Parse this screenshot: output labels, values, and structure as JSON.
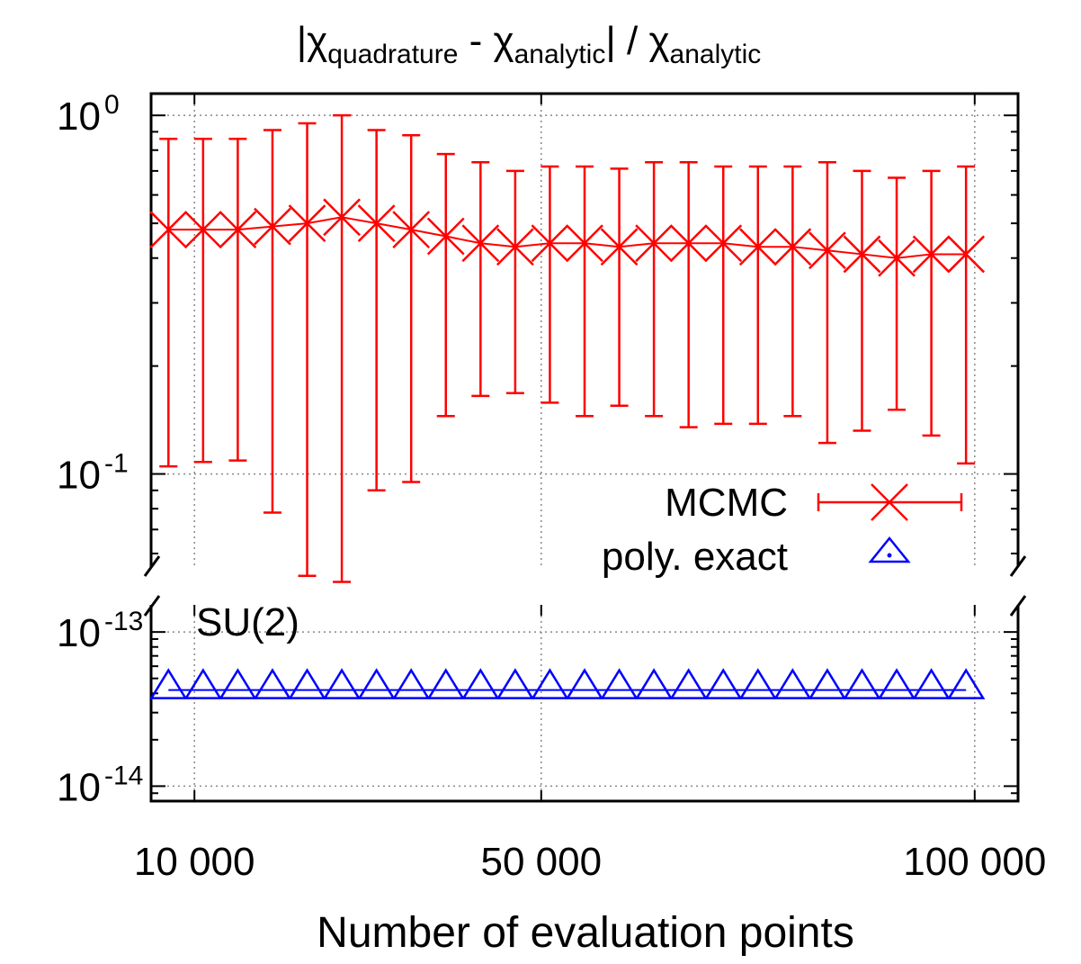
{
  "chart_data": {
    "type": "line",
    "title": {
      "abs_open": "|",
      "chi": "χ",
      "sub_quadrature": "quadrature",
      "minus": " - ",
      "sub_analytic": "analytic",
      "abs_close_div": "| / "
    },
    "xlabel": "Number of evaluation points",
    "xlim": [
      5000,
      105000
    ],
    "x_ticks": [
      {
        "value": 10000,
        "label": "10 000"
      },
      {
        "value": 50000,
        "label": "50 000"
      },
      {
        "value": 100000,
        "label": "100 000"
      }
    ],
    "yscale": "log",
    "broken_axis": true,
    "annotation": "SU(2)",
    "panels": [
      {
        "name": "upper",
        "ylim": [
          0.055,
          1.15
        ],
        "y_ticks": [
          {
            "value": 1,
            "base": "10",
            "exp": "0"
          },
          {
            "value": 0.1,
            "base": "10",
            "exp": "-1"
          }
        ]
      },
      {
        "name": "lower",
        "ylim": [
          8e-15,
          1.5e-13
        ],
        "y_ticks": [
          {
            "value": 1e-13,
            "base": "10",
            "exp": "-13"
          },
          {
            "value": 1e-14,
            "base": "10",
            "exp": "-14"
          }
        ]
      }
    ],
    "grid": true,
    "legend": {
      "position": "lower-right of upper panel"
    },
    "series": [
      {
        "name": "MCMC",
        "color": "#ff0000",
        "marker": "cross",
        "panel": "upper",
        "x": [
          7000,
          11000,
          15000,
          19000,
          23000,
          27000,
          31000,
          35000,
          39000,
          43000,
          47000,
          51000,
          55000,
          59000,
          63000,
          67000,
          71000,
          75000,
          79000,
          83000,
          87000,
          91000,
          95000,
          99000
        ],
        "y": [
          0.48,
          0.48,
          0.48,
          0.49,
          0.5,
          0.52,
          0.5,
          0.48,
          0.46,
          0.44,
          0.43,
          0.44,
          0.44,
          0.43,
          0.44,
          0.44,
          0.44,
          0.43,
          0.43,
          0.42,
          0.41,
          0.4,
          0.41,
          0.41
        ],
        "yerr_low": [
          0.105,
          0.108,
          0.109,
          0.078,
          0.052,
          0.05,
          0.09,
          0.095,
          0.145,
          0.165,
          0.168,
          0.158,
          0.145,
          0.155,
          0.145,
          0.135,
          0.138,
          0.138,
          0.145,
          0.122,
          0.132,
          0.151,
          0.128,
          0.107
        ],
        "yerr_high": [
          0.86,
          0.86,
          0.86,
          0.91,
          0.95,
          1.0,
          0.91,
          0.88,
          0.78,
          0.74,
          0.7,
          0.72,
          0.72,
          0.71,
          0.74,
          0.74,
          0.72,
          0.72,
          0.72,
          0.74,
          0.7,
          0.67,
          0.7,
          0.72
        ]
      },
      {
        "name": "poly. exact",
        "color": "#0000ff",
        "marker": "triangle",
        "panel": "lower",
        "x": [
          7000,
          11000,
          15000,
          19000,
          23000,
          27000,
          31000,
          35000,
          39000,
          43000,
          47000,
          51000,
          55000,
          59000,
          63000,
          67000,
          71000,
          75000,
          79000,
          83000,
          87000,
          91000,
          95000,
          99000
        ],
        "y": [
          4.2e-14,
          4.2e-14,
          4.2e-14,
          4.2e-14,
          4.2e-14,
          4.2e-14,
          4.2e-14,
          4.2e-14,
          4.2e-14,
          4.2e-14,
          4.2e-14,
          4.2e-14,
          4.2e-14,
          4.2e-14,
          4.2e-14,
          4.2e-14,
          4.2e-14,
          4.2e-14,
          4.2e-14,
          4.2e-14,
          4.2e-14,
          4.2e-14,
          4.2e-14,
          4.2e-14
        ]
      }
    ]
  }
}
